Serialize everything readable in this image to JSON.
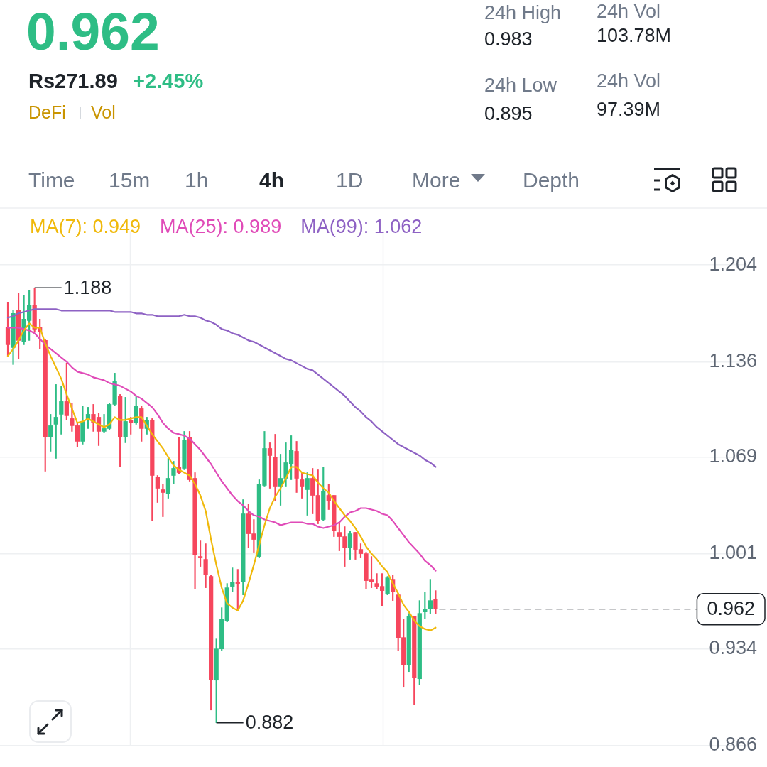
{
  "chart_data": {
    "type": "candlestick",
    "title": "0.962",
    "subtitle": "Rs271.89",
    "categories": [
      null,
      null,
      null,
      null,
      null,
      null,
      null,
      null,
      null,
      null,
      null,
      null,
      null,
      null,
      null,
      null,
      null,
      null,
      null,
      null,
      null,
      null,
      null,
      null,
      null,
      null,
      null,
      null,
      null,
      null,
      null,
      null,
      null,
      null,
      null,
      null,
      null,
      null,
      null,
      null,
      null,
      null,
      null,
      null,
      null,
      null,
      null,
      null,
      null,
      null,
      null,
      null,
      null,
      null,
      null,
      null,
      null,
      null,
      null,
      null,
      null,
      null,
      null,
      null,
      null,
      null,
      null,
      null,
      null,
      null,
      null,
      null,
      null,
      null,
      null,
      null,
      null,
      null,
      null,
      null,
      null
    ],
    "ohlc": [
      [
        1.16,
        1.178,
        1.14,
        1.148
      ],
      [
        1.146,
        1.172,
        1.134,
        1.17
      ],
      [
        1.172,
        1.184,
        1.138,
        1.151
      ],
      [
        1.15,
        1.183,
        1.148,
        1.166
      ],
      [
        1.165,
        1.186,
        1.151,
        1.176
      ],
      [
        1.176,
        1.188,
        1.157,
        1.159
      ],
      [
        1.16,
        1.166,
        1.145,
        1.157
      ],
      [
        1.151,
        1.152,
        1.059,
        1.083
      ],
      [
        1.083,
        1.099,
        1.073,
        1.091
      ],
      [
        1.092,
        1.12,
        1.068,
        1.097
      ],
      [
        1.099,
        1.119,
        1.085,
        1.108
      ],
      [
        1.108,
        1.135,
        1.095,
        1.098
      ],
      [
        1.096,
        1.107,
        1.087,
        1.091
      ],
      [
        1.091,
        1.093,
        1.076,
        1.08
      ],
      [
        1.08,
        1.105,
        1.078,
        1.094
      ],
      [
        1.095,
        1.104,
        1.089,
        1.099
      ],
      [
        1.099,
        1.106,
        1.087,
        1.093
      ],
      [
        1.097,
        1.1,
        1.077,
        1.087
      ],
      [
        1.087,
        1.099,
        1.086,
        1.089
      ],
      [
        1.089,
        1.107,
        1.088,
        1.106
      ],
      [
        1.106,
        1.128,
        1.105,
        1.122
      ],
      [
        1.112,
        1.113,
        1.062,
        1.083
      ],
      [
        1.083,
        1.111,
        1.079,
        1.094
      ],
      [
        1.095,
        1.097,
        1.085,
        1.093
      ],
      [
        1.093,
        1.112,
        1.092,
        1.105
      ],
      [
        1.103,
        1.105,
        1.08,
        1.089
      ],
      [
        1.089,
        1.097,
        1.085,
        1.095
      ],
      [
        1.095,
        1.096,
        1.024,
        1.056
      ],
      [
        1.055,
        1.056,
        1.037,
        1.047
      ],
      [
        1.046,
        1.05,
        1.027,
        1.044
      ],
      [
        1.043,
        1.068,
        1.04,
        1.054
      ],
      [
        1.056,
        1.066,
        1.05,
        1.061
      ],
      [
        1.062,
        1.083,
        1.057,
        1.058
      ],
      [
        1.061,
        1.087,
        1.06,
        1.081
      ],
      [
        1.083,
        1.087,
        1.052,
        1.053
      ],
      [
        1.054,
        1.058,
        0.976,
        1.0
      ],
      [
        0.999,
        1.01,
        0.992,
        0.998
      ],
      [
        0.997,
        1.008,
        0.977,
        0.986
      ],
      [
        0.985,
        0.986,
        0.891,
        0.912
      ],
      [
        0.912,
        0.941,
        0.882,
        0.934
      ],
      [
        0.934,
        0.963,
        0.933,
        0.955
      ],
      [
        0.954,
        0.98,
        0.953,
        0.977
      ],
      [
        0.978,
        0.991,
        0.974,
        0.981
      ],
      [
        0.981,
        0.99,
        0.961,
        0.98
      ],
      [
        0.981,
        1.039,
        0.972,
        1.029
      ],
      [
        1.029,
        1.036,
        1.005,
        1.015
      ],
      [
        1.015,
        1.025,
        1.002,
        1.011
      ],
      [
        0.999,
        1.053,
        0.998,
        1.05
      ],
      [
        1.049,
        1.087,
        1.048,
        1.075
      ],
      [
        1.075,
        1.079,
        1.047,
        1.07
      ],
      [
        1.069,
        1.085,
        1.038,
        1.048
      ],
      [
        1.048,
        1.071,
        1.035,
        1.054
      ],
      [
        1.054,
        1.079,
        1.048,
        1.065
      ],
      [
        1.064,
        1.084,
        1.053,
        1.074
      ],
      [
        1.073,
        1.08,
        1.044,
        1.054
      ],
      [
        1.053,
        1.058,
        1.04,
        1.048
      ],
      [
        1.046,
        1.058,
        1.028,
        1.054
      ],
      [
        1.054,
        1.061,
        1.029,
        1.042
      ],
      [
        1.042,
        1.06,
        1.022,
        1.024
      ],
      [
        1.025,
        1.062,
        1.024,
        1.045
      ],
      [
        1.042,
        1.05,
        1.032,
        1.038
      ],
      [
        1.042,
        1.042,
        1.013,
        1.017
      ],
      [
        1.016,
        1.023,
        1.003,
        1.013
      ],
      [
        1.013,
        1.02,
        0.992,
        1.005
      ],
      [
        1.005,
        1.017,
        0.997,
        1.015
      ],
      [
        1.016,
        1.016,
        0.997,
        1.004
      ],
      [
        1.004,
        1.008,
        0.998,
        1.001
      ],
      [
        1.001,
        1.002,
        0.976,
        0.982
      ],
      [
        0.983,
        0.999,
        0.977,
        0.981
      ],
      [
        0.98,
        0.987,
        0.976,
        0.978
      ],
      [
        0.978,
        0.987,
        0.964,
        0.975
      ],
      [
        0.973,
        0.985,
        0.972,
        0.984
      ],
      [
        0.983,
        0.986,
        0.968,
        0.974
      ],
      [
        0.972,
        0.973,
        0.933,
        0.942
      ],
      [
        0.942,
        0.955,
        0.907,
        0.923
      ],
      [
        0.923,
        0.959,
        0.918,
        0.957
      ],
      [
        0.957,
        0.957,
        0.895,
        0.914
      ],
      [
        0.913,
        0.968,
        0.909,
        0.959
      ],
      [
        0.96,
        0.974,
        0.955,
        0.962
      ],
      [
        0.962,
        0.983,
        0.959,
        0.968
      ],
      [
        0.969,
        0.975,
        0.959,
        0.962
      ]
    ],
    "colors": [
      "#f6465d",
      "#2ebd85",
      "#f6465d",
      "#2ebd85",
      "#2ebd85",
      "#f6465d",
      "#f6465d",
      "#f6465d",
      "#2ebd85",
      "#2ebd85",
      "#2ebd85",
      "#f6465d",
      "#f6465d",
      "#f6465d",
      "#2ebd85",
      "#2ebd85",
      "#f6465d",
      "#f6465d",
      "#2ebd85",
      "#2ebd85",
      "#2ebd85",
      "#f6465d",
      "#2ebd85",
      "#f6465d",
      "#2ebd85",
      "#f6465d",
      "#2ebd85",
      "#f6465d",
      "#f6465d",
      "#f6465d",
      "#2ebd85",
      "#2ebd85",
      "#f6465d",
      "#2ebd85",
      "#f6465d",
      "#f6465d",
      "#f6465d",
      "#f6465d",
      "#f6465d",
      "#2ebd85",
      "#2ebd85",
      "#2ebd85",
      "#2ebd85",
      "#f6465d",
      "#2ebd85",
      "#f6465d",
      "#f6465d",
      "#2ebd85",
      "#2ebd85",
      "#f6465d",
      "#f6465d",
      "#2ebd85",
      "#2ebd85",
      "#2ebd85",
      "#f6465d",
      "#f6465d",
      "#2ebd85",
      "#f6465d",
      "#f6465d",
      "#2ebd85",
      "#f6465d",
      "#f6465d",
      "#f6465d",
      "#f6465d",
      "#2ebd85",
      "#f6465d",
      "#f6465d",
      "#f6465d",
      "#f6465d",
      "#f6465d",
      "#f6465d",
      "#2ebd85",
      "#f6465d",
      "#f6465d",
      "#f6465d",
      "#2ebd85",
      "#f6465d",
      "#2ebd85",
      "#2ebd85",
      "#2ebd85",
      "#f6465d"
    ],
    "series": [
      {
        "type": "line",
        "name": "MA(7): 0.949",
        "color": "#f0b90b",
        "values": [
          1.14,
          1.145,
          1.151,
          1.158,
          1.163,
          1.16,
          1.16,
          1.149,
          1.14,
          1.132,
          1.124,
          1.113,
          1.103,
          1.093,
          1.094,
          1.096,
          1.094,
          1.092,
          1.09,
          1.092,
          1.097,
          1.095,
          1.095,
          1.096,
          1.097,
          1.097,
          1.091,
          1.085,
          1.08,
          1.075,
          1.069,
          1.063,
          1.06,
          1.058,
          1.056,
          1.05,
          1.042,
          1.031,
          1.011,
          0.993,
          0.977,
          0.966,
          0.963,
          0.961,
          0.968,
          0.98,
          0.993,
          1.007,
          1.021,
          1.033,
          1.041,
          1.047,
          1.054,
          1.062,
          1.062,
          1.058,
          1.057,
          1.056,
          1.051,
          1.047,
          1.044,
          1.038,
          1.033,
          1.028,
          1.024,
          1.019,
          1.013,
          1.006,
          1.001,
          0.997,
          0.992,
          0.988,
          0.98,
          0.973,
          0.965,
          0.96,
          0.954,
          0.95,
          0.948,
          0.947,
          0.949
        ]
      },
      {
        "type": "line",
        "name": "MA(25): 0.989",
        "color": "#e04bb8",
        "values": [
          1.16,
          1.16,
          1.16,
          1.159,
          1.158,
          1.156,
          1.152,
          1.148,
          1.145,
          1.142,
          1.139,
          1.136,
          1.132,
          1.129,
          1.128,
          1.127,
          1.125,
          1.124,
          1.123,
          1.121,
          1.12,
          1.119,
          1.117,
          1.115,
          1.112,
          1.11,
          1.107,
          1.104,
          1.099,
          1.093,
          1.089,
          1.086,
          1.085,
          1.084,
          1.082,
          1.078,
          1.074,
          1.069,
          1.064,
          1.058,
          1.052,
          1.047,
          1.042,
          1.038,
          1.035,
          1.031,
          1.028,
          1.027,
          1.025,
          1.024,
          1.023,
          1.021,
          1.022,
          1.023,
          1.023,
          1.023,
          1.022,
          1.022,
          1.02,
          1.019,
          1.02,
          1.021,
          1.023,
          1.027,
          1.03,
          1.031,
          1.033,
          1.033,
          1.032,
          1.031,
          1.029,
          1.028,
          1.024,
          1.019,
          1.014,
          1.009,
          1.005,
          1.001,
          0.996,
          0.993,
          0.989
        ]
      },
      {
        "type": "line",
        "name": "MA(99): 1.062",
        "color": "#8e62c4",
        "values": [
          1.167,
          1.168,
          1.17,
          1.171,
          1.172,
          1.173,
          1.173,
          1.173,
          1.173,
          1.173,
          1.172,
          1.172,
          1.172,
          1.172,
          1.172,
          1.172,
          1.172,
          1.172,
          1.172,
          1.172,
          1.171,
          1.171,
          1.171,
          1.171,
          1.17,
          1.17,
          1.169,
          1.169,
          1.168,
          1.168,
          1.168,
          1.168,
          1.168,
          1.169,
          1.168,
          1.168,
          1.167,
          1.165,
          1.164,
          1.162,
          1.159,
          1.158,
          1.156,
          1.155,
          1.153,
          1.151,
          1.15,
          1.148,
          1.146,
          1.144,
          1.142,
          1.14,
          1.138,
          1.137,
          1.135,
          1.133,
          1.131,
          1.13,
          1.127,
          1.124,
          1.121,
          1.118,
          1.115,
          1.112,
          1.108,
          1.104,
          1.101,
          1.097,
          1.094,
          1.09,
          1.087,
          1.084,
          1.081,
          1.078,
          1.076,
          1.074,
          1.072,
          1.07,
          1.067,
          1.065,
          1.062
        ]
      }
    ],
    "ylim": [
      0.866,
      1.228
    ],
    "yticks": [
      0.866,
      0.934,
      1.001,
      1.069,
      1.136,
      1.204
    ],
    "grid": true,
    "legend": "top",
    "marker": "none",
    "line_style": "solid",
    "tick_labels": "y",
    "ref_lines": [
      {
        "axis": "y",
        "value": 0.962,
        "label": "0.962",
        "line_style": "dashed",
        "color": "#1e2329"
      }
    ],
    "annotations": [
      "+2.45%",
      "DeFi",
      "Vol",
      "24h High",
      "0.983",
      "24h Low",
      "0.895",
      "24h Vol",
      "103.78M",
      "24h Vol",
      "97.39M",
      "Time",
      "15m",
      "1h",
      "4h",
      "1D",
      "More",
      "Depth",
      "1.188",
      "0.882"
    ]
  }
}
